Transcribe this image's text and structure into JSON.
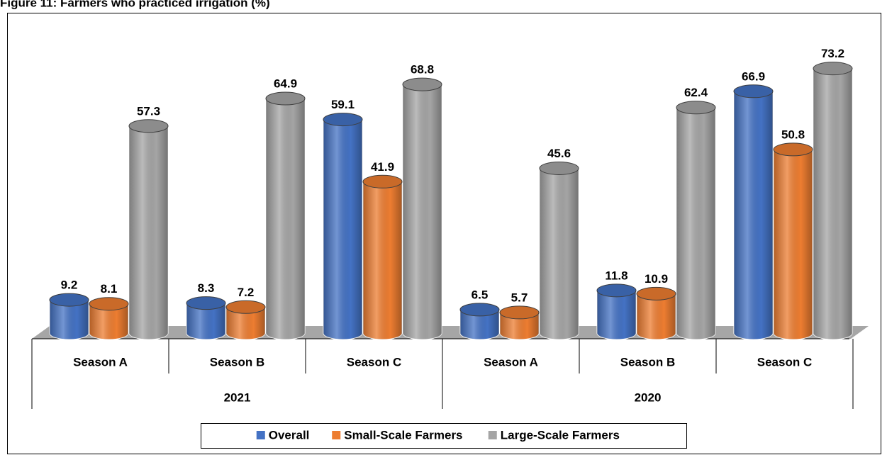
{
  "chart_data": {
    "type": "bar3d",
    "title": "Figure 11: Farmers who practiced irrigation (%)",
    "categories": [
      "Season A",
      "Season B",
      "Season C",
      "Season A",
      "Season B",
      "Season C"
    ],
    "groups": [
      "2021",
      "2020"
    ],
    "series": [
      {
        "name": "Overall",
        "color": "#4472c4",
        "values": [
          9.2,
          8.3,
          59.1,
          6.5,
          11.8,
          66.9
        ]
      },
      {
        "name": "Small-Scale Farmers",
        "color": "#ed7d31",
        "values": [
          8.1,
          7.2,
          41.9,
          5.7,
          10.9,
          50.8
        ]
      },
      {
        "name": "Large-Scale Farmers",
        "color": "#a5a5a5",
        "values": [
          57.3,
          64.9,
          68.8,
          45.6,
          62.4,
          73.2
        ]
      }
    ]
  }
}
